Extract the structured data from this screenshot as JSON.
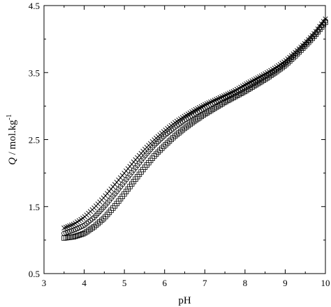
{
  "chart_data": {
    "type": "scatter",
    "xlabel": "pH",
    "ylabel": {
      "q": "Q",
      "rest": " / mol.kg",
      "sup": "-1"
    },
    "xlim": [
      3,
      10
    ],
    "ylim": [
      0.5,
      4.5
    ],
    "xticks": [
      "3",
      "4",
      "5",
      "6",
      "7",
      "8",
      "9",
      "10"
    ],
    "yticks": [
      "0.5",
      "1.5",
      "2.5",
      "3.5",
      "4.5"
    ],
    "grid": false,
    "legend": "none",
    "series": [
      {
        "marker": "cross",
        "x": [
          3.5,
          3.75,
          4.0,
          4.25,
          4.5,
          4.75,
          5.0,
          5.25,
          5.5,
          5.75,
          6.0,
          6.25,
          6.5,
          6.75,
          7.0,
          7.25,
          7.5,
          7.75,
          8.0,
          8.25,
          8.5,
          8.75,
          9.0,
          9.25,
          9.5,
          9.75,
          10.0
        ],
        "y": [
          1.18,
          1.24,
          1.34,
          1.48,
          1.64,
          1.82,
          2.0,
          2.18,
          2.35,
          2.5,
          2.63,
          2.75,
          2.85,
          2.94,
          3.02,
          3.09,
          3.16,
          3.23,
          3.32,
          3.4,
          3.48,
          3.57,
          3.67,
          3.8,
          3.94,
          4.1,
          4.3
        ]
      },
      {
        "marker": "circle",
        "x": [
          3.5,
          3.75,
          4.0,
          4.25,
          4.5,
          4.75,
          5.0,
          5.25,
          5.5,
          5.75,
          6.0,
          6.25,
          6.5,
          6.75,
          7.0,
          7.25,
          7.5,
          7.75,
          8.0,
          8.25,
          8.5,
          8.75,
          9.0,
          9.25,
          9.5,
          9.75,
          10.0
        ],
        "y": [
          1.1,
          1.15,
          1.22,
          1.34,
          1.5,
          1.68,
          1.87,
          2.06,
          2.25,
          2.42,
          2.56,
          2.68,
          2.79,
          2.88,
          2.97,
          3.05,
          3.12,
          3.19,
          3.27,
          3.35,
          3.44,
          3.53,
          3.64,
          3.78,
          3.92,
          4.08,
          4.27
        ]
      },
      {
        "marker": "square",
        "x": [
          3.5,
          3.75,
          4.0,
          4.25,
          4.5,
          4.75,
          5.0,
          5.25,
          5.5,
          5.75,
          6.0,
          6.25,
          6.5,
          6.75,
          7.0,
          7.25,
          7.5,
          7.75,
          8.0,
          8.25,
          8.5,
          8.75,
          9.0,
          9.25,
          9.5,
          9.75,
          10.0
        ],
        "y": [
          1.03,
          1.05,
          1.1,
          1.2,
          1.33,
          1.5,
          1.69,
          1.89,
          2.08,
          2.26,
          2.41,
          2.55,
          2.67,
          2.78,
          2.88,
          2.97,
          3.06,
          3.14,
          3.22,
          3.31,
          3.4,
          3.5,
          3.61,
          3.75,
          3.9,
          4.06,
          4.25
        ]
      }
    ]
  }
}
